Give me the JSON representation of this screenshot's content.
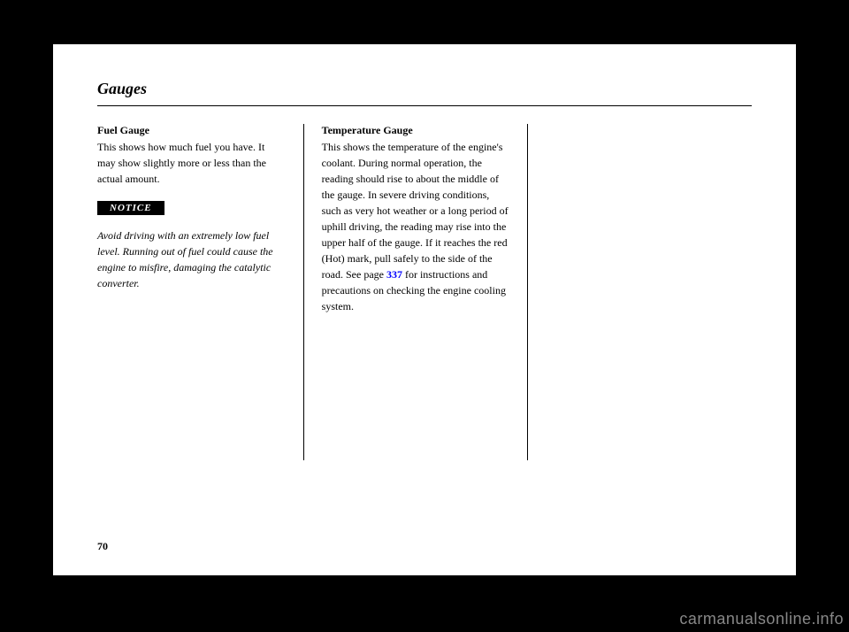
{
  "header": {
    "title": "Gauges"
  },
  "columns": {
    "left": {
      "heading": "Fuel Gauge",
      "para1": "This shows how much fuel you have. It may show slightly more or less than the actual amount.",
      "notice": "NOTICE",
      "para2": "Avoid driving with an extremely low fuel level. Running out of fuel could cause the engine to misfire, damaging the catalytic converter."
    },
    "middle": {
      "heading": "Temperature Gauge",
      "para_before_link": "This shows the temperature of the engine's coolant. During normal operation, the reading should rise to about the middle of the gauge. In severe driving conditions, such as very hot weather or a long period of uphill driving, the reading may rise into the upper half of the gauge. If it reaches the red (Hot) mark, pull safely to the side of the road. See page ",
      "link": "337",
      "para_after_link": " for instructions and precautions on checking the engine cooling system."
    }
  },
  "page_number": "70",
  "watermark": "carmanualsonline.info",
  "styling": {
    "page_bg": "#ffffff",
    "body_bg": "#000000",
    "text_color": "#000000",
    "link_color": "#0000ff",
    "notice_bg": "#000000",
    "notice_fg": "#ffffff",
    "watermark_color": "#888888",
    "body_fontsize": 12,
    "heading_fontsize": 12,
    "title_fontsize": 18
  }
}
